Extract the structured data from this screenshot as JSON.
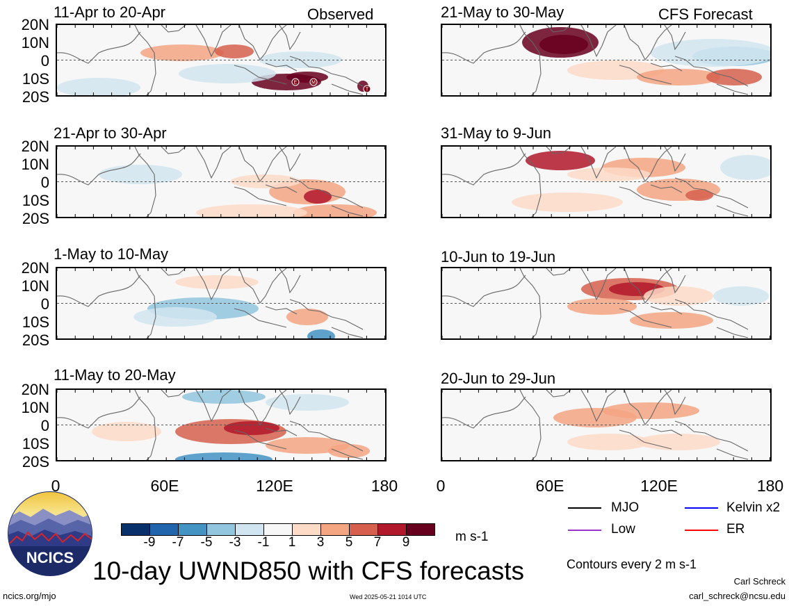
{
  "panels_left": [
    {
      "title": "11-Apr to 20-Apr",
      "label": "Observed"
    },
    {
      "title": "21-Apr to 30-Apr",
      "label": ""
    },
    {
      "title": "1-May to 10-May",
      "label": ""
    },
    {
      "title": "11-May to 20-May",
      "label": ""
    }
  ],
  "panels_right": [
    {
      "title": "21-May to 30-May",
      "label": "CFS Forecast"
    },
    {
      "title": "31-May to 9-Jun",
      "label": ""
    },
    {
      "title": "10-Jun to 19-Jun",
      "label": ""
    },
    {
      "title": "20-Jun to 29-Jun",
      "label": ""
    }
  ],
  "lat_labels": [
    "20N",
    "10N",
    "0",
    "10S",
    "20S"
  ],
  "lon_labels": [
    "0",
    "60E",
    "120E",
    "180"
  ],
  "colorbar": {
    "labels": [
      "-9",
      "-7",
      "-5",
      "-3",
      "-1",
      "1",
      "3",
      "5",
      "7",
      "9"
    ],
    "colors": [
      "#08306b",
      "#2166ac",
      "#4393c3",
      "#92c5de",
      "#d1e5f0",
      "#f7f7f7",
      "#fddbc7",
      "#f4a582",
      "#d6604d",
      "#b2182b",
      "#67001f"
    ],
    "units": "m s-1"
  },
  "legend": {
    "mjo": "MJO",
    "kelvin": "Kelvin x2",
    "low": "Low",
    "er": "ER",
    "mjo_color": "#000000",
    "kelvin_color": "#0000ff",
    "low_color": "#9933cc",
    "er_color": "#ff0000"
  },
  "contour_note": "Contours every 2 m s-1",
  "main_title": "10-day UWND850 with CFS forecasts",
  "logo_text": "NCICS",
  "footer": {
    "url": "ncics.org/mjo",
    "timestamp": "Wed 2025-05-21 1014 UTC",
    "author": "Carl Schreck",
    "email": "carl_schreck@ncsu.edu"
  },
  "storm_markers": [
    "E",
    "M",
    "T"
  ]
}
